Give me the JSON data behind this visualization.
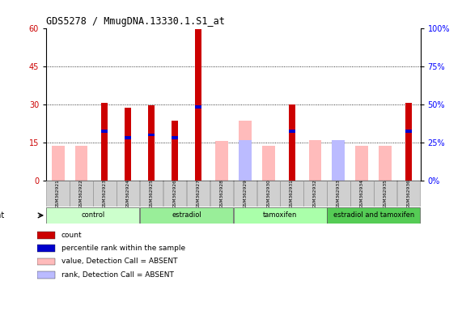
{
  "title": "GDS5278 / MmugDNA.13330.1.S1_at",
  "samples": [
    "GSM362921",
    "GSM362922",
    "GSM362923",
    "GSM362924",
    "GSM362925",
    "GSM362926",
    "GSM362927",
    "GSM362928",
    "GSM362929",
    "GSM362930",
    "GSM362931",
    "GSM362932",
    "GSM362933",
    "GSM362934",
    "GSM362935",
    "GSM362936"
  ],
  "groups": [
    {
      "label": "control",
      "color": "#ccffcc",
      "start": 0,
      "end": 3
    },
    {
      "label": "estradiol",
      "color": "#99ee99",
      "start": 4,
      "end": 7
    },
    {
      "label": "tamoxifen",
      "color": "#aaffaa",
      "start": 8,
      "end": 11
    },
    {
      "label": "estradiol and tamoxifen",
      "color": "#55cc55",
      "start": 12,
      "end": 15
    }
  ],
  "count_values": [
    0,
    0,
    30.5,
    28.5,
    29.5,
    23.5,
    59.5,
    0,
    0,
    0,
    30.0,
    0,
    0,
    0,
    0,
    30.5
  ],
  "pct_rank_values": [
    0,
    0,
    20.0,
    17.5,
    18.5,
    17.5,
    29.5,
    0,
    0,
    0,
    20.0,
    0,
    0,
    0,
    0,
    20.0
  ],
  "absent_val": [
    13.5,
    13.5,
    0,
    0,
    0,
    0,
    0,
    15.5,
    23.5,
    13.5,
    0,
    16.0,
    15.5,
    13.5,
    13.5,
    0
  ],
  "absent_rank": [
    0,
    0,
    0,
    0,
    0,
    0,
    0,
    0,
    16.0,
    0,
    0,
    0,
    16.0,
    0,
    0,
    0
  ],
  "ylim_left": [
    0,
    60
  ],
  "ylim_right": [
    0,
    100
  ],
  "yticks_left": [
    0,
    15,
    30,
    45,
    60
  ],
  "yticks_right": [
    0,
    25,
    50,
    75,
    100
  ],
  "color_count": "#cc0000",
  "color_pct_rank": "#0000cc",
  "color_absent_val": "#ffbbbb",
  "color_absent_rank": "#bbbbff",
  "bg_plot": "#ffffff",
  "bg_sample_box": "#d0d0d0",
  "legend_items": [
    {
      "color": "#cc0000",
      "label": "count"
    },
    {
      "color": "#0000cc",
      "label": "percentile rank within the sample"
    },
    {
      "color": "#ffbbbb",
      "label": "value, Detection Call = ABSENT"
    },
    {
      "color": "#bbbbff",
      "label": "rank, Detection Call = ABSENT"
    }
  ]
}
